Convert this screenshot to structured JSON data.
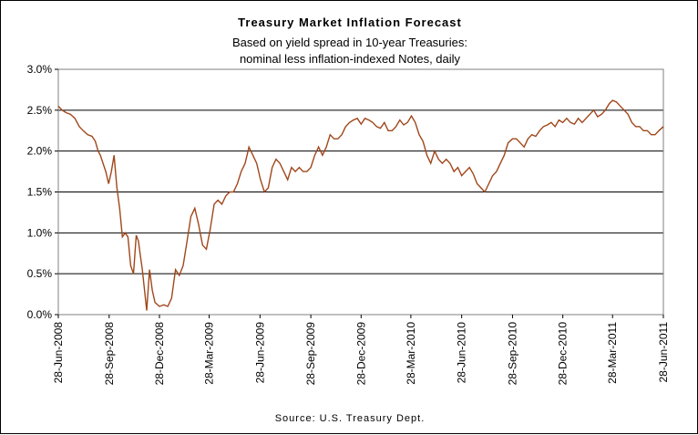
{
  "chart_data": {
    "type": "line",
    "title": "Treasury Market Inflation Forecast",
    "subtitle_lines": [
      "Based on yield spread in 10-year Treasuries:",
      "nominal less inflation-indexed Notes, daily"
    ],
    "source": "Source: U.S. Treasury Dept.",
    "xlabel": "",
    "ylabel": "",
    "ylim": [
      0,
      3.0
    ],
    "y_ticks": [
      "0.0%",
      "0.5%",
      "1.0%",
      "1.5%",
      "2.0%",
      "2.5%",
      "3.0%"
    ],
    "x_tick_labels": [
      "28-Jun-2008",
      "28-Sep-2008",
      "28-Dec-2008",
      "28-Mar-2009",
      "28-Jun-2009",
      "28-Sep-2009",
      "28-Dec-2009",
      "28-Mar-2010",
      "28-Jun-2010",
      "28-Sep-2010",
      "28-Dec-2010",
      "28-Mar-2011",
      "28-Jun-2011"
    ],
    "grid": "horizontal",
    "line_color": "#a0471b",
    "series": [
      {
        "x": [
          "2008-06-28",
          "2008-07-05",
          "2008-07-12",
          "2008-07-20",
          "2008-07-28",
          "2008-08-05",
          "2008-08-12",
          "2008-08-20",
          "2008-08-28",
          "2008-09-03",
          "2008-09-08",
          "2008-09-12",
          "2008-09-17",
          "2008-09-22",
          "2008-09-27",
          "2008-10-02",
          "2008-10-07",
          "2008-10-12",
          "2008-10-17",
          "2008-10-22",
          "2008-10-27",
          "2008-11-01",
          "2008-11-06",
          "2008-11-11",
          "2008-11-16",
          "2008-11-20",
          "2008-11-23",
          "2008-11-27",
          "2008-12-01",
          "2008-12-05",
          "2008-12-10",
          "2008-12-15",
          "2008-12-20",
          "2008-12-28",
          "2009-01-05",
          "2009-01-12",
          "2009-01-19",
          "2009-01-26",
          "2009-02-02",
          "2009-02-09",
          "2009-02-16",
          "2009-02-23",
          "2009-03-02",
          "2009-03-09",
          "2009-03-16",
          "2009-03-23",
          "2009-03-30",
          "2009-04-06",
          "2009-04-13",
          "2009-04-20",
          "2009-04-27",
          "2009-05-04",
          "2009-05-11",
          "2009-05-18",
          "2009-05-25",
          "2009-06-01",
          "2009-06-08",
          "2009-06-15",
          "2009-06-22",
          "2009-06-29",
          "2009-07-06",
          "2009-07-13",
          "2009-07-20",
          "2009-07-27",
          "2009-08-03",
          "2009-08-10",
          "2009-08-17",
          "2009-08-24",
          "2009-08-31",
          "2009-09-07",
          "2009-09-14",
          "2009-09-21",
          "2009-09-28",
          "2009-10-05",
          "2009-10-12",
          "2009-10-19",
          "2009-10-26",
          "2009-11-02",
          "2009-11-09",
          "2009-11-16",
          "2009-11-23",
          "2009-11-30",
          "2009-12-07",
          "2009-12-14",
          "2009-12-21",
          "2009-12-28",
          "2010-01-04",
          "2010-01-11",
          "2010-01-18",
          "2010-01-25",
          "2010-02-01",
          "2010-02-08",
          "2010-02-15",
          "2010-02-22",
          "2010-03-01",
          "2010-03-08",
          "2010-03-15",
          "2010-03-22",
          "2010-03-29",
          "2010-04-05",
          "2010-04-12",
          "2010-04-19",
          "2010-04-26",
          "2010-05-03",
          "2010-05-10",
          "2010-05-17",
          "2010-05-24",
          "2010-05-31",
          "2010-06-07",
          "2010-06-14",
          "2010-06-21",
          "2010-06-28",
          "2010-07-05",
          "2010-07-12",
          "2010-07-19",
          "2010-07-26",
          "2010-08-02",
          "2010-08-09",
          "2010-08-16",
          "2010-08-23",
          "2010-08-30",
          "2010-09-06",
          "2010-09-13",
          "2010-09-20",
          "2010-09-28",
          "2010-10-05",
          "2010-10-12",
          "2010-10-19",
          "2010-10-26",
          "2010-11-02",
          "2010-11-09",
          "2010-11-16",
          "2010-11-23",
          "2010-11-30",
          "2010-12-07",
          "2010-12-14",
          "2010-12-21",
          "2010-12-28",
          "2011-01-04",
          "2011-01-11",
          "2011-01-18",
          "2011-01-25",
          "2011-02-01",
          "2011-02-08",
          "2011-02-15",
          "2011-02-22",
          "2011-03-01",
          "2011-03-08",
          "2011-03-15",
          "2011-03-22",
          "2011-03-28",
          "2011-04-04",
          "2011-04-11",
          "2011-04-18",
          "2011-04-25",
          "2011-05-02",
          "2011-05-09",
          "2011-05-16",
          "2011-05-23",
          "2011-05-30",
          "2011-06-06",
          "2011-06-13",
          "2011-06-20",
          "2011-06-28"
        ],
        "values": [
          2.55,
          2.5,
          2.47,
          2.45,
          2.4,
          2.3,
          2.25,
          2.2,
          2.18,
          2.12,
          2.0,
          1.95,
          1.85,
          1.75,
          1.6,
          1.75,
          1.95,
          1.55,
          1.3,
          0.95,
          1.0,
          0.95,
          0.6,
          0.5,
          0.97,
          0.9,
          0.75,
          0.55,
          0.3,
          0.05,
          0.55,
          0.3,
          0.15,
          0.1,
          0.12,
          0.1,
          0.2,
          0.55,
          0.48,
          0.6,
          0.9,
          1.2,
          1.3,
          1.1,
          0.85,
          0.8,
          1.05,
          1.35,
          1.4,
          1.35,
          1.45,
          1.5,
          1.5,
          1.6,
          1.75,
          1.85,
          2.05,
          1.95,
          1.85,
          1.65,
          1.5,
          1.55,
          1.8,
          1.9,
          1.85,
          1.75,
          1.65,
          1.8,
          1.75,
          1.8,
          1.75,
          1.75,
          1.8,
          1.95,
          2.05,
          1.95,
          2.05,
          2.2,
          2.15,
          2.15,
          2.2,
          2.3,
          2.35,
          2.38,
          2.4,
          2.33,
          2.4,
          2.38,
          2.35,
          2.3,
          2.28,
          2.35,
          2.25,
          2.25,
          2.3,
          2.38,
          2.32,
          2.35,
          2.43,
          2.35,
          2.2,
          2.12,
          1.95,
          1.85,
          2.0,
          1.9,
          1.85,
          1.9,
          1.85,
          1.75,
          1.8,
          1.7,
          1.75,
          1.8,
          1.72,
          1.6,
          1.55,
          1.5,
          1.6,
          1.7,
          1.75,
          1.85,
          1.95,
          2.1,
          2.15,
          2.15,
          2.1,
          2.05,
          2.15,
          2.2,
          2.18,
          2.25,
          2.3,
          2.32,
          2.35,
          2.3,
          2.38,
          2.35,
          2.4,
          2.35,
          2.33,
          2.4,
          2.35,
          2.4,
          2.45,
          2.5,
          2.42,
          2.45,
          2.5,
          2.58,
          2.62,
          2.6,
          2.55,
          2.5,
          2.45,
          2.35,
          2.3,
          2.3,
          2.25,
          2.25,
          2.2,
          2.2,
          2.25,
          2.3
        ]
      }
    ]
  }
}
